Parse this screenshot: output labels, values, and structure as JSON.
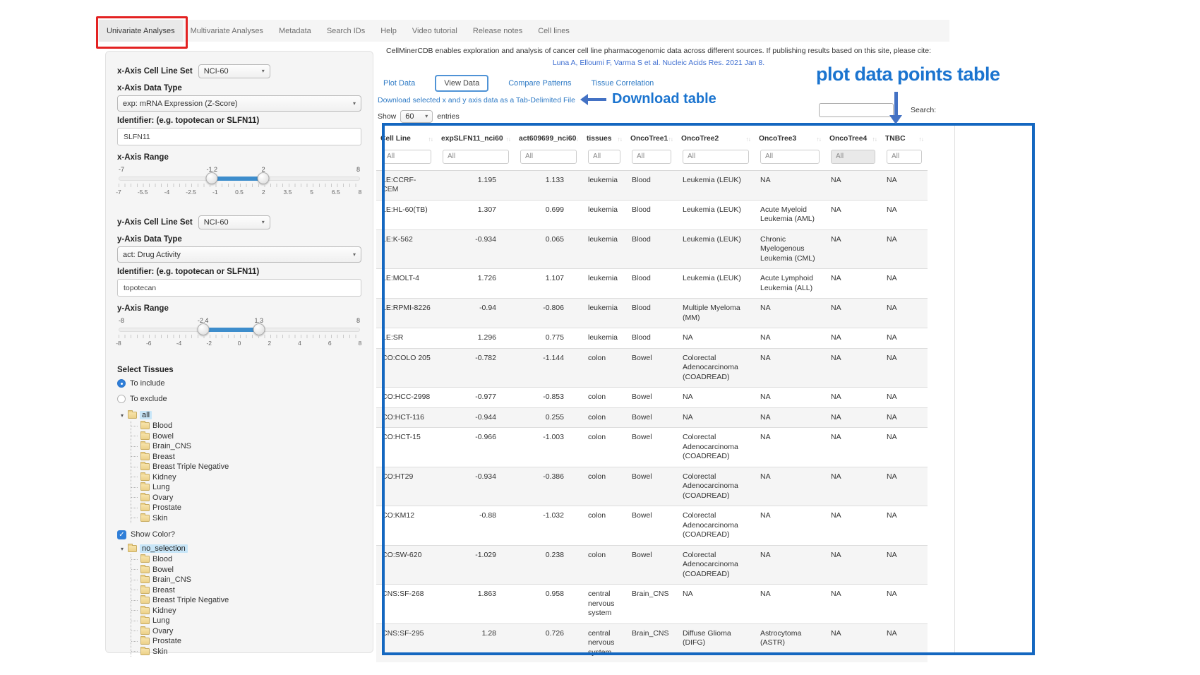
{
  "nav": {
    "items": [
      {
        "label": "Univariate Analyses",
        "active": true
      },
      {
        "label": "Multivariate Analyses"
      },
      {
        "label": "Metadata"
      },
      {
        "label": "Search IDs"
      },
      {
        "label": "Help"
      },
      {
        "label": "Video tutorial"
      },
      {
        "label": "Release notes"
      },
      {
        "label": "Cell lines"
      }
    ]
  },
  "sidebar": {
    "x_axis": {
      "cell_line_set_label": "x-Axis Cell Line Set",
      "cell_line_set_value": "NCI-60",
      "data_type_label": "x-Axis Data Type",
      "data_type_value": "exp: mRNA Expression (Z-Score)",
      "identifier_label": "Identifier: (e.g. topotecan or SLFN11)",
      "identifier_value": "SLFN11",
      "range_label": "x-Axis Range",
      "range": {
        "min": -7,
        "max": 8,
        "low": -1.2,
        "high": 2,
        "min_label": "-7",
        "max_label": "8",
        "low_label": "-1.2",
        "high_label": "2",
        "ticks": [
          "-7",
          "-5.5",
          "-4",
          "-2.5",
          "-1",
          "0.5",
          "2",
          "3.5",
          "5",
          "6.5",
          "8"
        ]
      }
    },
    "y_axis": {
      "cell_line_set_label": "y-Axis Cell Line Set",
      "cell_line_set_value": "NCI-60",
      "data_type_label": "y-Axis Data Type",
      "data_type_value": "act: Drug Activity",
      "identifier_label": "Identifier: (e.g. topotecan or SLFN11)",
      "identifier_value": "topotecan",
      "range_label": "y-Axis Range",
      "range": {
        "min": -8,
        "max": 8,
        "low": -2.4,
        "high": 1.3,
        "min_label": "-8",
        "max_label": "8",
        "low_label": "-2.4",
        "high_label": "1.3",
        "ticks": [
          "-8",
          "-6",
          "-4",
          "-2",
          "0",
          "2",
          "4",
          "6",
          "8"
        ]
      }
    },
    "tissues": {
      "label": "Select Tissues",
      "include_label": "To include",
      "exclude_label": "To exclude",
      "include_selected": true
    },
    "include_tree": {
      "root": "all",
      "children": [
        "Blood",
        "Bowel",
        "Brain_CNS",
        "Breast",
        "Breast Triple Negative",
        "Kidney",
        "Lung",
        "Ovary",
        "Prostate",
        "Skin"
      ]
    },
    "show_color_label": "Show Color?",
    "color_tree": {
      "root": "no_selection",
      "children": [
        "Blood",
        "Bowel",
        "Brain_CNS",
        "Breast",
        "Breast Triple Negative",
        "Kidney",
        "Lung",
        "Ovary",
        "Prostate",
        "Skin"
      ]
    }
  },
  "main": {
    "citation_line1": "CellMinerCDB enables exploration and analysis of cancer cell line pharmacogenomic data across different sources. If publishing results based on this site, please cite:",
    "citation_link": "Luna A, Elloumi F, Varma S et al. Nucleic Acids Res. 2021 Jan 8.",
    "tabs": [
      {
        "label": "Plot Data"
      },
      {
        "label": "View Data",
        "active": true
      },
      {
        "label": "Compare Patterns"
      },
      {
        "label": "Tissue Correlation"
      }
    ],
    "download_link": "Download selected x and y axis data as a Tab-Delimited File",
    "show_label": "Show",
    "entries_value": "60",
    "entries_label": "entries",
    "search_label": "Search:"
  },
  "table": {
    "columns": [
      "Cell Line",
      "expSLFN11_nci60",
      "act609699_nci60",
      "tissues",
      "OncoTree1",
      "OncoTree2",
      "OncoTree3",
      "OncoTree4",
      "TNBC"
    ],
    "filter_placeholder": "All",
    "disabled_filter_column": "OncoTree4",
    "rows": [
      [
        "LE:CCRF-CEM",
        "1.195",
        "1.133",
        "leukemia",
        "Blood",
        "Leukemia (LEUK)",
        "NA",
        "NA",
        "NA"
      ],
      [
        "LE:HL-60(TB)",
        "1.307",
        "0.699",
        "leukemia",
        "Blood",
        "Leukemia (LEUK)",
        "Acute Myeloid Leukemia (AML)",
        "NA",
        "NA"
      ],
      [
        "LE:K-562",
        "-0.934",
        "0.065",
        "leukemia",
        "Blood",
        "Leukemia (LEUK)",
        "Chronic Myelogenous Leukemia (CML)",
        "NA",
        "NA"
      ],
      [
        "LE:MOLT-4",
        "1.726",
        "1.107",
        "leukemia",
        "Blood",
        "Leukemia (LEUK)",
        "Acute Lymphoid Leukemia (ALL)",
        "NA",
        "NA"
      ],
      [
        "LE:RPMI-8226",
        "-0.94",
        "-0.806",
        "leukemia",
        "Blood",
        "Multiple Myeloma (MM)",
        "NA",
        "NA",
        "NA"
      ],
      [
        "LE:SR",
        "1.296",
        "0.775",
        "leukemia",
        "Blood",
        "NA",
        "NA",
        "NA",
        "NA"
      ],
      [
        "CO:COLO 205",
        "-0.782",
        "-1.144",
        "colon",
        "Bowel",
        "Colorectal Adenocarcinoma (COADREAD)",
        "NA",
        "NA",
        "NA"
      ],
      [
        "CO:HCC-2998",
        "-0.977",
        "-0.853",
        "colon",
        "Bowel",
        "NA",
        "NA",
        "NA",
        "NA"
      ],
      [
        "CO:HCT-116",
        "-0.944",
        "0.255",
        "colon",
        "Bowel",
        "NA",
        "NA",
        "NA",
        "NA"
      ],
      [
        "CO:HCT-15",
        "-0.966",
        "-1.003",
        "colon",
        "Bowel",
        "Colorectal Adenocarcinoma (COADREAD)",
        "NA",
        "NA",
        "NA"
      ],
      [
        "CO:HT29",
        "-0.934",
        "-0.386",
        "colon",
        "Bowel",
        "Colorectal Adenocarcinoma (COADREAD)",
        "NA",
        "NA",
        "NA"
      ],
      [
        "CO:KM12",
        "-0.88",
        "-1.032",
        "colon",
        "Bowel",
        "Colorectal Adenocarcinoma (COADREAD)",
        "NA",
        "NA",
        "NA"
      ],
      [
        "CO:SW-620",
        "-1.029",
        "0.238",
        "colon",
        "Bowel",
        "Colorectal Adenocarcinoma (COADREAD)",
        "NA",
        "NA",
        "NA"
      ],
      [
        "CNS:SF-268",
        "1.863",
        "0.958",
        "central nervous system",
        "Brain_CNS",
        "NA",
        "NA",
        "NA",
        "NA"
      ],
      [
        "CNS:SF-295",
        "1.28",
        "0.726",
        "central nervous system",
        "Brain_CNS",
        "Diffuse Glioma (DIFG)",
        "Astrocytoma (ASTR)",
        "NA",
        "NA"
      ]
    ]
  },
  "annotations": {
    "download_table_label": "Download table",
    "plot_table_label": "plot data points table",
    "red_box_color": "#e32222",
    "blue_box_color": "#1467c0",
    "annotation_text_blue": "#1b74cf",
    "arrow_blue": "#4472c4",
    "slider_fill_blue": "#3d8dcc",
    "link_blue": "#2e7ac5",
    "tree_highlight_blue": "#c8e6f8"
  }
}
